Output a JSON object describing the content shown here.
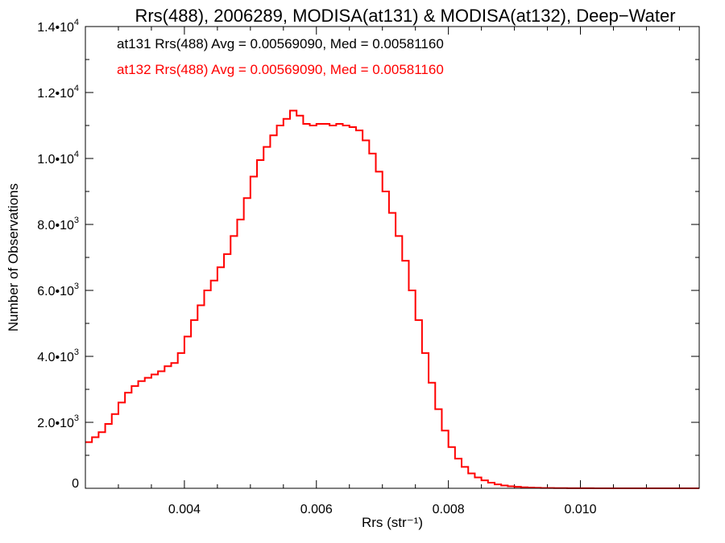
{
  "chart_data": {
    "type": "line",
    "style": "histogram-step",
    "title": "Rrs(488), 2006289, MODISA(at131) & MODISA(at132), Deep−Water",
    "xlabel": "Rrs (str⁻¹)",
    "ylabel": "Number of Observations",
    "xlim": [
      0.0025,
      0.0118
    ],
    "ylim": [
      0,
      14000
    ],
    "x_ticks": [
      "0.004",
      "0.006",
      "0.008",
      "0.010"
    ],
    "x_tick_values": [
      0.004,
      0.006,
      0.008,
      0.01
    ],
    "y_ticks": [
      {
        "mant": "0",
        "exp": ""
      },
      {
        "mant": "2.0•10",
        "exp": "3"
      },
      {
        "mant": "4.0•10",
        "exp": "3"
      },
      {
        "mant": "6.0•10",
        "exp": "3"
      },
      {
        "mant": "8.0•10",
        "exp": "3"
      },
      {
        "mant": "1.0•10",
        "exp": "4"
      },
      {
        "mant": "1.2•10",
        "exp": "4"
      },
      {
        "mant": "1.4•10",
        "exp": "4"
      }
    ],
    "y_tick_values": [
      0,
      2000,
      4000,
      6000,
      8000,
      10000,
      12000,
      14000
    ],
    "grid": false,
    "annotations": [
      {
        "text": "at131 Rrs(488) Avg = 0.00569090, Med = 0.00581160",
        "color": "#000000"
      },
      {
        "text": "at132 Rrs(488) Avg = 0.00569090, Med = 0.00581160",
        "color": "#ff0000"
      }
    ],
    "series": [
      {
        "color": "#ff0000",
        "x": [
          0.0025,
          0.0026,
          0.0027,
          0.0028,
          0.0029,
          0.003,
          0.0031,
          0.0032,
          0.0033,
          0.0034,
          0.0035,
          0.0036,
          0.0037,
          0.0038,
          0.0039,
          0.004,
          0.0041,
          0.0042,
          0.0043,
          0.0044,
          0.0045,
          0.0046,
          0.0047,
          0.0048,
          0.0049,
          0.005,
          0.0051,
          0.0052,
          0.0053,
          0.0054,
          0.0055,
          0.0056,
          0.0057,
          0.0058,
          0.0059,
          0.006,
          0.0061,
          0.0062,
          0.0063,
          0.0064,
          0.0065,
          0.0066,
          0.0067,
          0.0068,
          0.0069,
          0.007,
          0.0071,
          0.0072,
          0.0073,
          0.0074,
          0.0075,
          0.0076,
          0.0077,
          0.0078,
          0.0079,
          0.008,
          0.0081,
          0.0082,
          0.0083,
          0.0084,
          0.0085,
          0.0086,
          0.0087,
          0.0088,
          0.0089,
          0.009,
          0.0091,
          0.0092,
          0.0093,
          0.0094,
          0.0095,
          0.0096,
          0.0098,
          0.01,
          0.0102,
          0.0104,
          0.0106,
          0.0108,
          0.011,
          0.0112,
          0.0114,
          0.0116,
          0.0118
        ],
        "y": [
          1400,
          1550,
          1700,
          1950,
          2250,
          2600,
          2900,
          3100,
          3250,
          3350,
          3450,
          3550,
          3700,
          3800,
          4100,
          4600,
          5100,
          5550,
          6000,
          6300,
          6700,
          7100,
          7650,
          8150,
          8800,
          9450,
          9950,
          10350,
          10700,
          11000,
          11200,
          11450,
          11300,
          11050,
          11000,
          11050,
          11050,
          11000,
          11050,
          11000,
          10950,
          10850,
          10550,
          10150,
          9600,
          9000,
          8350,
          7650,
          6900,
          6000,
          5100,
          4100,
          3200,
          2400,
          1750,
          1250,
          900,
          650,
          450,
          330,
          240,
          170,
          120,
          85,
          60,
          45,
          30,
          20,
          15,
          10,
          8,
          5,
          3,
          2,
          1,
          0,
          0,
          0,
          0,
          0,
          0,
          0,
          0
        ]
      }
    ]
  }
}
